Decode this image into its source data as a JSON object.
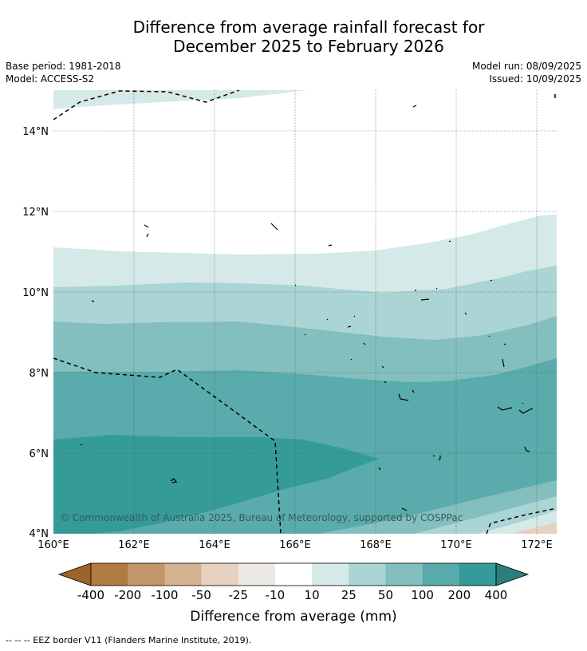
{
  "title_line1": "Difference from average rainfall forecast for",
  "title_line2": "December 2025 to February 2026",
  "meta": {
    "base_period": "Base period: 1981-2018",
    "model": "Model: ACCESS-S2",
    "model_run": "Model run: 08/09/2025",
    "issued": "Issued: 10/09/2025"
  },
  "map": {
    "lat_labels": [
      "14°N",
      "12°N",
      "10°N",
      "8°N",
      "6°N",
      "4°N"
    ],
    "lon_labels": [
      "160°E",
      "162°E",
      "164°E",
      "166°E",
      "168°E",
      "170°E",
      "172°E"
    ],
    "copyright": "© Commonwealth of Australia 2025, Bureau of Meteorology, supported by COSPPac"
  },
  "colorbar": {
    "labels": [
      "-400",
      "-200",
      "-100",
      "-50",
      "-25",
      "-10",
      "10",
      "25",
      "50",
      "100",
      "200",
      "400"
    ],
    "colors": [
      "#9c6428",
      "#b07a40",
      "#c39568",
      "#d4b18f",
      "#e6d0bf",
      "#ece8e4",
      "#ffffff",
      "#d4e9e8",
      "#abd4d4",
      "#83bfbf",
      "#5aabab",
      "#349b98",
      "#2a7f7c"
    ],
    "title": "Difference from average (mm)"
  },
  "footnote": "--  --  -- EEZ border V11 (Flanders Marine Institute, 2019)."
}
